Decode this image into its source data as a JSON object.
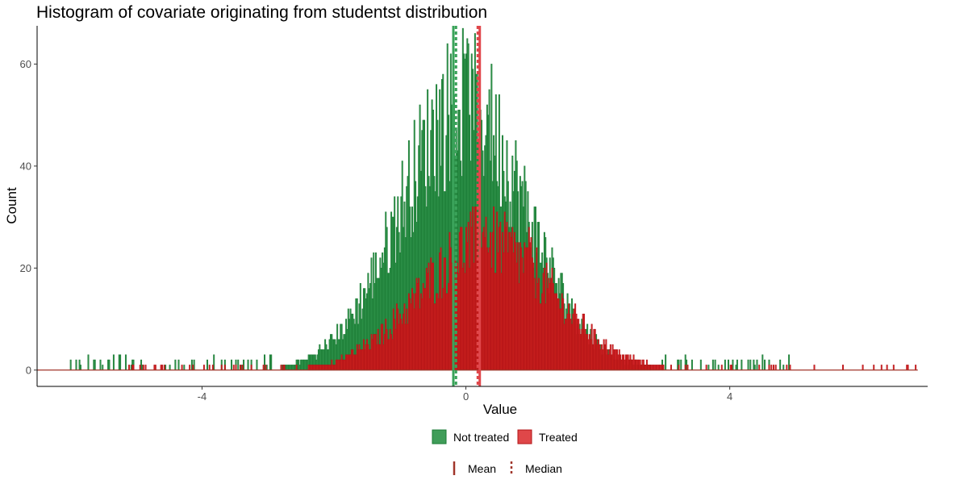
{
  "chart_data": {
    "type": "histogram",
    "title": "Histogram of covariate originating from studentst distribution",
    "xlabel": "Value",
    "ylabel": "Count",
    "xlim": [
      -6.5,
      7.0
    ],
    "ylim": [
      -3.2,
      67.5
    ],
    "x_ticks": [
      -4,
      0,
      4
    ],
    "y_ticks": [
      0,
      20,
      40,
      60
    ],
    "grid": false,
    "bin_width": 0.0167,
    "series": [
      {
        "name": "Not treated",
        "color": "#1e8c3c",
        "line": "#1a7a34",
        "counts_shape": "peak near 0.0 with max about 62, tails roughly from -6.1 to 4.8"
      },
      {
        "name": "Treated",
        "color": "#d7191c",
        "line": "#b31417",
        "counts_shape": "peak near 0.3 with max about 30, tails roughly from -5.2 to 6.8"
      }
    ],
    "reference_lines": [
      {
        "series": "Not treated",
        "stat": "Mean",
        "x": -0.19,
        "color": "#3aa35a",
        "style": "solid"
      },
      {
        "series": "Not treated",
        "stat": "Median",
        "x": -0.15,
        "color": "#3aa35a",
        "style": "dashed"
      },
      {
        "series": "Treated",
        "stat": "Mean",
        "x": 0.21,
        "color": "#e0474b",
        "style": "solid"
      },
      {
        "series": "Treated",
        "stat": "Median",
        "x": 0.18,
        "color": "#e0474b",
        "style": "dashed"
      }
    ],
    "legend": {
      "placement": "bottom",
      "fill_entries": [
        "Not treated",
        "Treated"
      ],
      "line_entries": [
        "Mean",
        "Median"
      ]
    }
  }
}
